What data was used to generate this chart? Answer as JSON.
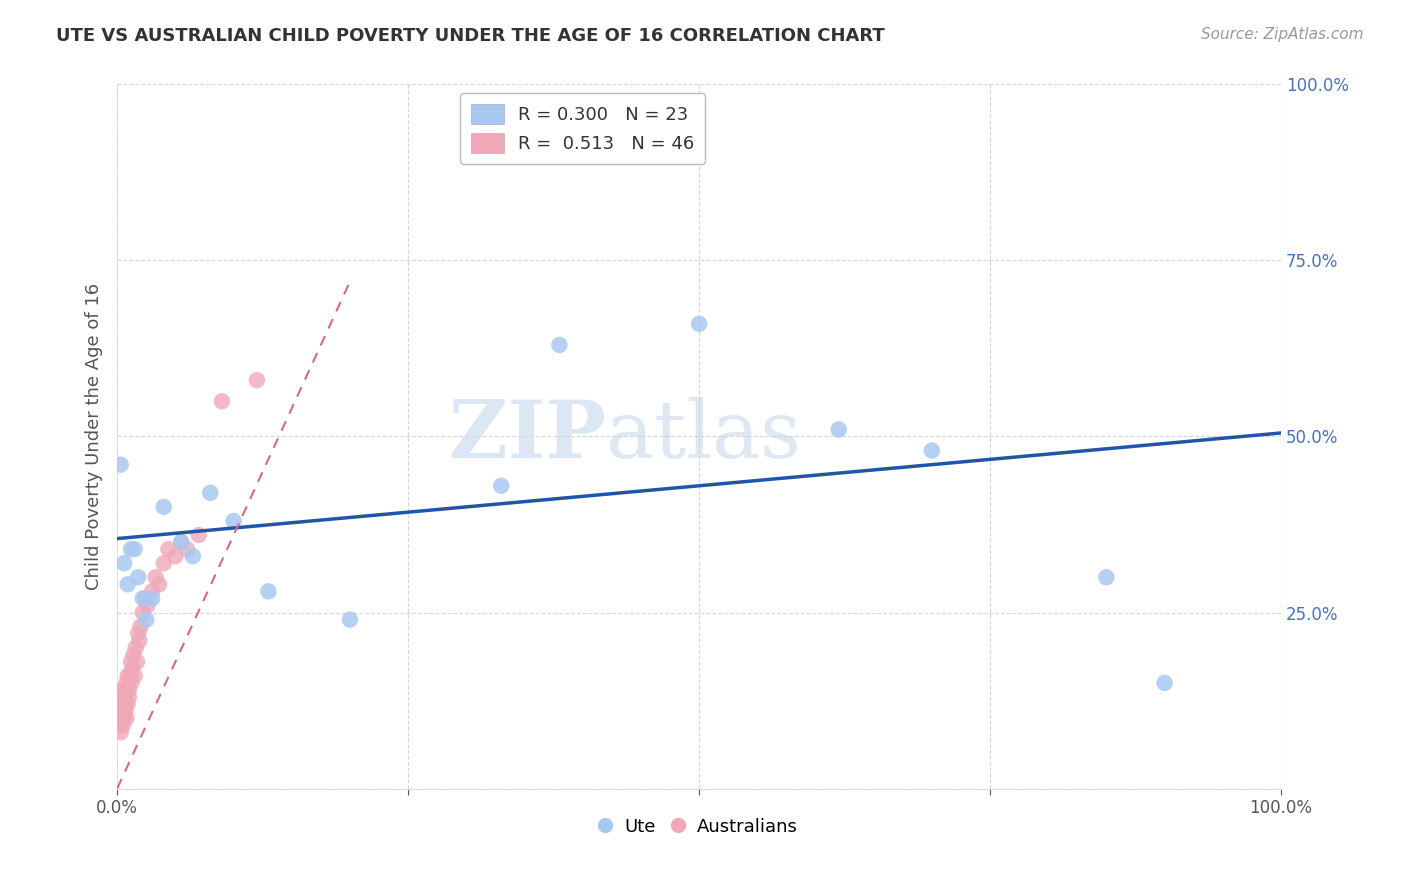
{
  "title": "UTE VS AUSTRALIAN CHILD POVERTY UNDER THE AGE OF 16 CORRELATION CHART",
  "source": "Source: ZipAtlas.com",
  "ylabel": "Child Poverty Under the Age of 16",
  "xlim": [
    0,
    1
  ],
  "ylim": [
    0,
    1
  ],
  "watermark_zip": "ZIP",
  "watermark_atlas": "atlas",
  "legend_R1": "R = 0.300",
  "legend_N1": "N = 23",
  "legend_R2": "R =  0.513",
  "legend_N2": "N = 46",
  "blue_scatter_color": "#A8C8F0",
  "pink_scatter_color": "#F0A8B8",
  "blue_line_color": "#2255AA",
  "pink_line_color": "#CC4466",
  "pink_dash_color": "#DD6688",
  "legend_blue_fill": "#A8C8F0",
  "legend_pink_fill": "#F0A8B8",
  "ute_x": [
    0.003,
    0.006,
    0.009,
    0.012,
    0.015,
    0.018,
    0.022,
    0.025,
    0.03,
    0.04,
    0.055,
    0.065,
    0.08,
    0.1,
    0.13,
    0.2,
    0.33,
    0.38,
    0.5,
    0.62,
    0.7,
    0.85,
    0.9
  ],
  "ute_y": [
    0.46,
    0.32,
    0.29,
    0.34,
    0.34,
    0.3,
    0.27,
    0.24,
    0.27,
    0.4,
    0.35,
    0.33,
    0.42,
    0.38,
    0.28,
    0.24,
    0.43,
    0.63,
    0.66,
    0.51,
    0.48,
    0.3,
    0.15
  ],
  "aus_x": [
    0.001,
    0.002,
    0.002,
    0.003,
    0.003,
    0.004,
    0.004,
    0.005,
    0.005,
    0.005,
    0.006,
    0.006,
    0.007,
    0.007,
    0.007,
    0.008,
    0.008,
    0.009,
    0.009,
    0.01,
    0.01,
    0.011,
    0.012,
    0.012,
    0.013,
    0.014,
    0.015,
    0.016,
    0.017,
    0.018,
    0.019,
    0.02,
    0.022,
    0.024,
    0.026,
    0.03,
    0.033,
    0.036,
    0.04,
    0.044,
    0.05,
    0.055,
    0.06,
    0.07,
    0.09,
    0.12
  ],
  "aus_y": [
    0.1,
    0.09,
    0.13,
    0.08,
    0.12,
    0.1,
    0.14,
    0.09,
    0.12,
    0.11,
    0.1,
    0.13,
    0.11,
    0.14,
    0.12,
    0.1,
    0.15,
    0.12,
    0.16,
    0.13,
    0.14,
    0.16,
    0.15,
    0.18,
    0.17,
    0.19,
    0.16,
    0.2,
    0.18,
    0.22,
    0.21,
    0.23,
    0.25,
    0.27,
    0.26,
    0.28,
    0.3,
    0.29,
    0.32,
    0.34,
    0.33,
    0.35,
    0.34,
    0.36,
    0.55,
    0.58
  ],
  "blue_line_x0": 0.0,
  "blue_line_y0": 0.355,
  "blue_line_x1": 1.0,
  "blue_line_y1": 0.505,
  "pink_line_x0": 0.0,
  "pink_line_y0": 0.0,
  "pink_line_x1": 0.2,
  "pink_line_y1": 0.72,
  "background_color": "#FFFFFF",
  "grid_color": "#CCCCCC"
}
